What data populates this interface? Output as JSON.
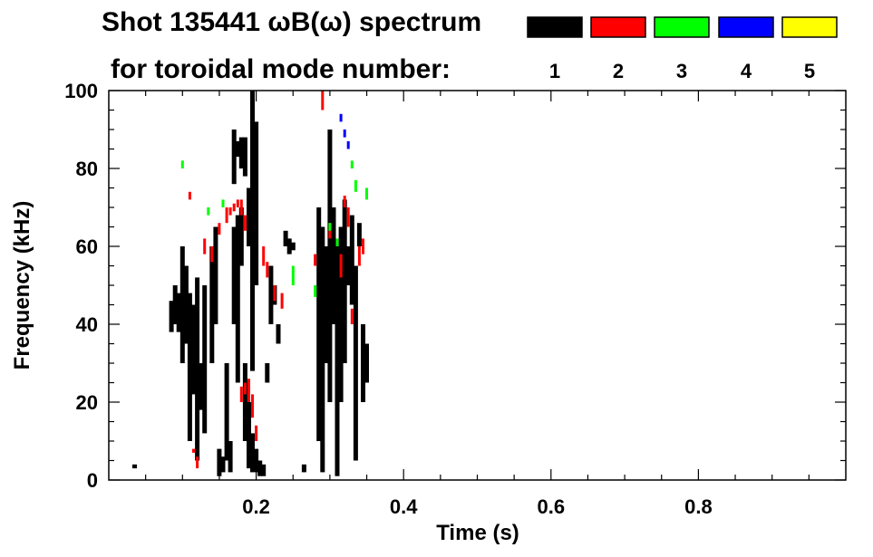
{
  "chart_data": {
    "type": "heatmap",
    "title": "Shot 135441 ωB(ω) spectrum",
    "subtitle": "for toroidal mode number:",
    "xlabel": "Time (s)",
    "ylabel": "Frequency (kHz)",
    "xlim": [
      0.0,
      1.0
    ],
    "ylim": [
      0,
      100
    ],
    "x_ticks": [
      0.2,
      0.4,
      0.6,
      0.8
    ],
    "x_tick_labels": [
      "0.2",
      "0.4",
      "0.6",
      "0.8"
    ],
    "y_ticks": [
      0,
      20,
      40,
      60,
      80,
      100
    ],
    "y_tick_labels": [
      "0",
      "20",
      "40",
      "60",
      "80",
      "100"
    ],
    "grid": false,
    "legend_placement": "top-right",
    "legend": [
      {
        "label": "1",
        "color": "#000000"
      },
      {
        "label": "2",
        "color": "#ff0000"
      },
      {
        "label": "3",
        "color": "#00ff00"
      },
      {
        "label": "4",
        "color": "#0000ff"
      },
      {
        "label": "5",
        "color": "#ffff00"
      }
    ],
    "series": [
      {
        "mode": 1,
        "color": "#000000",
        "segments": [
          [
            0.12,
            5,
            52
          ],
          [
            0.11,
            10,
            48
          ],
          [
            0.13,
            12,
            50
          ],
          [
            0.14,
            30,
            60
          ],
          [
            0.145,
            40,
            65
          ],
          [
            0.1,
            30,
            60
          ],
          [
            0.105,
            35,
            55
          ],
          [
            0.095,
            38,
            48
          ],
          [
            0.09,
            40,
            50
          ],
          [
            0.085,
            38,
            46
          ],
          [
            0.115,
            22,
            45
          ],
          [
            0.125,
            18,
            30
          ],
          [
            0.15,
            1,
            8
          ],
          [
            0.155,
            2,
            6
          ],
          [
            0.16,
            5,
            30
          ],
          [
            0.165,
            2,
            10
          ],
          [
            0.17,
            40,
            65
          ],
          [
            0.175,
            25,
            68
          ],
          [
            0.18,
            55,
            70
          ],
          [
            0.185,
            10,
            30
          ],
          [
            0.19,
            3,
            20
          ],
          [
            0.195,
            2,
            12
          ],
          [
            0.2,
            2,
            8
          ],
          [
            0.205,
            1,
            5
          ],
          [
            0.21,
            1,
            4
          ],
          [
            0.195,
            28,
            100
          ],
          [
            0.2,
            50,
            92
          ],
          [
            0.19,
            60,
            75
          ],
          [
            0.185,
            78,
            88
          ],
          [
            0.18,
            80,
            88
          ],
          [
            0.175,
            83,
            87
          ],
          [
            0.17,
            76,
            90
          ],
          [
            0.22,
            40,
            55
          ],
          [
            0.225,
            45,
            50
          ],
          [
            0.24,
            60,
            64
          ],
          [
            0.245,
            58,
            62
          ],
          [
            0.25,
            59,
            61
          ],
          [
            0.265,
            2,
            4
          ],
          [
            0.285,
            10,
            70
          ],
          [
            0.29,
            2,
            65
          ],
          [
            0.295,
            30,
            60
          ],
          [
            0.3,
            20,
            90
          ],
          [
            0.305,
            40,
            70
          ],
          [
            0.31,
            1,
            60
          ],
          [
            0.315,
            20,
            65
          ],
          [
            0.32,
            30,
            72
          ],
          [
            0.325,
            50,
            60
          ],
          [
            0.33,
            45,
            68
          ],
          [
            0.335,
            5,
            55
          ],
          [
            0.34,
            60,
            66
          ],
          [
            0.345,
            20,
            40
          ],
          [
            0.35,
            25,
            35
          ],
          [
            0.215,
            25,
            30
          ],
          [
            0.23,
            35,
            40
          ],
          [
            0.035,
            3,
            4
          ]
        ]
      },
      {
        "mode": 2,
        "color": "#ff0000",
        "segments": [
          [
            0.11,
            72,
            74
          ],
          [
            0.13,
            58,
            62
          ],
          [
            0.14,
            56,
            60
          ],
          [
            0.15,
            63,
            66
          ],
          [
            0.16,
            66,
            70
          ],
          [
            0.165,
            68,
            70
          ],
          [
            0.17,
            69,
            71
          ],
          [
            0.175,
            70,
            72
          ],
          [
            0.18,
            68,
            72
          ],
          [
            0.185,
            64,
            68
          ],
          [
            0.19,
            20,
            26
          ],
          [
            0.195,
            16,
            22
          ],
          [
            0.21,
            55,
            60
          ],
          [
            0.215,
            52,
            56
          ],
          [
            0.225,
            46,
            50
          ],
          [
            0.235,
            44,
            48
          ],
          [
            0.12,
            3,
            6
          ],
          [
            0.115,
            7,
            8
          ],
          [
            0.18,
            20,
            24
          ],
          [
            0.185,
            22,
            25
          ],
          [
            0.29,
            95,
            100
          ],
          [
            0.3,
            62,
            66
          ],
          [
            0.315,
            52,
            58
          ],
          [
            0.32,
            70,
            73
          ],
          [
            0.325,
            65,
            70
          ],
          [
            0.33,
            40,
            44
          ],
          [
            0.34,
            55,
            60
          ],
          [
            0.345,
            58,
            62
          ],
          [
            0.2,
            10,
            14
          ],
          [
            0.28,
            55,
            58
          ]
        ]
      },
      {
        "mode": 3,
        "color": "#00ff00",
        "segments": [
          [
            0.1,
            80,
            82
          ],
          [
            0.135,
            68,
            70
          ],
          [
            0.155,
            70,
            72
          ],
          [
            0.25,
            50,
            55
          ],
          [
            0.28,
            47,
            50
          ],
          [
            0.3,
            64,
            66
          ],
          [
            0.31,
            60,
            62
          ],
          [
            0.33,
            80,
            82
          ],
          [
            0.335,
            74,
            77
          ],
          [
            0.35,
            72,
            75
          ]
        ]
      },
      {
        "mode": 4,
        "color": "#0000ff",
        "segments": [
          [
            0.315,
            92,
            94
          ],
          [
            0.32,
            88,
            90
          ],
          [
            0.325,
            85,
            87
          ]
        ]
      },
      {
        "mode": 5,
        "color": "#ffff00",
        "segments": []
      }
    ]
  }
}
